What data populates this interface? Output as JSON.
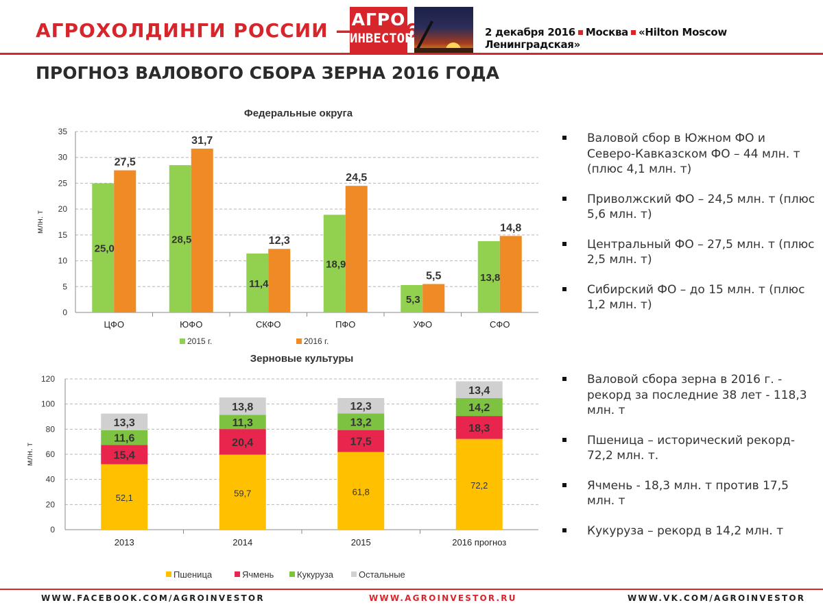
{
  "header": {
    "title": "АГРОХОЛДИНГИ РОССИИ — 2016",
    "logo_line1": "АГРО",
    "logo_line2": "ИНВЕСТОР",
    "date": "2 декабря 2016",
    "city": "Москва",
    "venue": "«Hilton Moscow Ленинградская»"
  },
  "page_title": "ПРОГНОЗ ВАЛОВОГО СБОРА ЗЕРНА 2016 ГОДА",
  "colors": {
    "brand_red": "#d7262b",
    "green_2015": "#92d050",
    "orange_2016": "#f08a24",
    "wheat": "#ffc000",
    "barley": "#e8264d",
    "corn": "#7ec241",
    "other": "#d0d0d0"
  },
  "chart_data": [
    {
      "type": "bar",
      "title": "Федеральные округа",
      "ylabel": "млн. т",
      "xlabel": "",
      "ylim": [
        0,
        35
      ],
      "yticks": [
        0,
        5,
        10,
        15,
        20,
        25,
        30,
        35
      ],
      "grid": true,
      "legend_position": "bottom",
      "categories": [
        "ЦФО",
        "ЮФО",
        "СКФО",
        "ПФО",
        "УФО",
        "СФО"
      ],
      "series": [
        {
          "name": "2015 г.",
          "values": [
            25.0,
            28.5,
            11.4,
            18.9,
            5.3,
            13.8
          ],
          "labels": [
            "25,0",
            "28,5",
            "11,4",
            "18,9",
            "5,3",
            "13,8"
          ]
        },
        {
          "name": "2016 г.",
          "values": [
            27.5,
            31.7,
            12.3,
            24.5,
            5.5,
            14.8
          ],
          "labels": [
            "27,5",
            "31,7",
            "12,3",
            "24,5",
            "5,5",
            "14,8"
          ]
        }
      ]
    },
    {
      "type": "bar",
      "stacked": true,
      "title": "Зерновые культуры",
      "ylabel": "млн. т",
      "xlabel": "",
      "ylim": [
        0,
        120
      ],
      "yticks": [
        0,
        20,
        40,
        60,
        80,
        100,
        120
      ],
      "grid": true,
      "legend_position": "bottom",
      "categories": [
        "2013",
        "2014",
        "2015",
        "2016 прогноз"
      ],
      "series": [
        {
          "name": "Пшеница",
          "values": [
            52.1,
            59.7,
            61.8,
            72.2
          ],
          "labels": [
            "52,1",
            "59,7",
            "61,8",
            "72,2"
          ]
        },
        {
          "name": "Ячмень",
          "values": [
            15.4,
            20.4,
            17.5,
            18.3
          ],
          "labels": [
            "15,4",
            "20,4",
            "17,5",
            "18,3"
          ]
        },
        {
          "name": "Кукуруза",
          "values": [
            11.6,
            11.3,
            13.2,
            14.2
          ],
          "labels": [
            "11,6",
            "11,3",
            "13,2",
            "14,2"
          ]
        },
        {
          "name": "Остальные",
          "values": [
            13.3,
            13.8,
            12.3,
            13.4
          ],
          "labels": [
            "13,3",
            "13,8",
            "12,3",
            "13,4"
          ]
        }
      ]
    }
  ],
  "bullets_top": [
    "Валовой сбор в Южном ФО и Северо-Кавказском ФО –  44 млн. т (плюс 4,1 млн. т)",
    "Приволжский ФО – 24,5 млн. т (плюс 5,6 млн. т)",
    "Центральный ФО – 27,5 млн. т (плюс 2,5 млн. т)",
    "Сибирский ФО – до 15 млн. т (плюс 1,2 млн. т)"
  ],
  "bullets_bottom": [
    "Валовой сбора зерна в 2016 г.  - рекорд за последние 38 лет - 118,3 млн. т",
    "Пшеница – исторический рекорд- 72,2 млн. т.",
    "Ячмень - 18,3 млн. т против 17,5 млн. т",
    "Кукуруза – рекорд в 14,2 млн. т"
  ],
  "footer": {
    "left": "WWW.FACEBOOK.COM/AGROINVESTOR",
    "center": "WWW.AGROINVESTOR.RU",
    "right": "WWW.VK.COM/AGROINVESTOR"
  }
}
